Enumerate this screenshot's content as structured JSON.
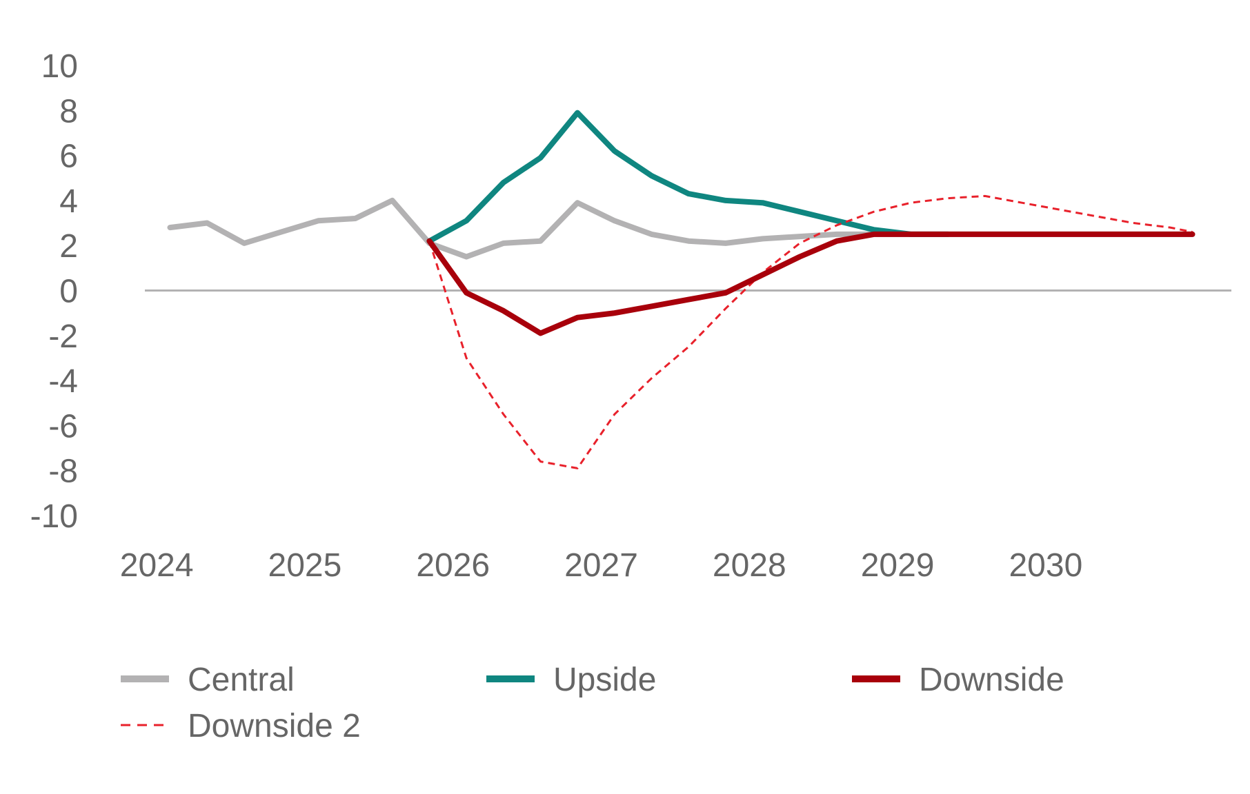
{
  "chart_data": {
    "type": "line",
    "title": "",
    "xlabel": "",
    "ylabel": "",
    "ylim": [
      -10,
      10
    ],
    "xlim": [
      2024.0,
      2031.1
    ],
    "y_ticks": [
      "10",
      "8",
      "6",
      "4",
      "2",
      "0",
      "-2",
      "-4",
      "-6",
      "-8",
      "-10"
    ],
    "y_tick_values": [
      10,
      8,
      6,
      4,
      2,
      0,
      -2,
      -4,
      -6,
      -8,
      -10
    ],
    "x_ticks": [
      "2024",
      "2025",
      "2026",
      "2027",
      "2028",
      "2029",
      "2030"
    ],
    "x_tick_values": [
      2024,
      2025,
      2026,
      2027,
      2028,
      2029,
      2030
    ],
    "grid": false,
    "zero_line": true,
    "legend_position": "bottom",
    "series": [
      {
        "name": "Central",
        "color": "#b3b2b3",
        "style": "solid",
        "x": [
          2024.1,
          2024.35,
          2024.6,
          2024.85,
          2025.1,
          2025.35,
          2025.6,
          2025.85,
          2026.1,
          2026.35,
          2026.6,
          2026.85,
          2027.1,
          2027.35,
          2027.6,
          2027.85,
          2028.1,
          2028.35,
          2028.6,
          2028.85,
          2029.1,
          2029.35,
          2029.6,
          2029.85,
          2030.1,
          2030.35,
          2030.6,
          2030.85,
          2031.0
        ],
        "values": [
          2.8,
          3.0,
          2.1,
          2.6,
          3.1,
          3.2,
          4.0,
          2.1,
          1.5,
          2.1,
          2.2,
          3.9,
          3.1,
          2.5,
          2.2,
          2.1,
          2.3,
          2.4,
          2.5,
          2.5,
          2.5,
          2.5,
          2.5,
          2.5,
          2.5,
          2.5,
          2.5,
          2.5,
          2.5
        ]
      },
      {
        "name": "Upside",
        "color": "#0f8680",
        "style": "solid",
        "x": [
          2025.85,
          2026.1,
          2026.35,
          2026.6,
          2026.85,
          2027.1,
          2027.35,
          2027.6,
          2027.85,
          2028.1,
          2028.35,
          2028.6,
          2028.85,
          2029.1,
          2029.35
        ],
        "values": [
          2.2,
          3.1,
          4.8,
          5.9,
          7.9,
          6.2,
          5.1,
          4.3,
          4.0,
          3.9,
          3.5,
          3.1,
          2.7,
          2.5,
          2.5
        ]
      },
      {
        "name": "Downside",
        "color": "#a8000b",
        "style": "solid",
        "x": [
          2025.85,
          2026.1,
          2026.35,
          2026.6,
          2026.85,
          2027.1,
          2027.35,
          2027.6,
          2027.85,
          2028.1,
          2028.35,
          2028.6,
          2028.85,
          2029.1,
          2029.35,
          2029.6,
          2029.85,
          2030.1,
          2030.35,
          2030.6,
          2030.85,
          2031.0
        ],
        "values": [
          2.2,
          -0.1,
          -0.9,
          -1.9,
          -1.2,
          -1.0,
          -0.7,
          -0.4,
          -0.1,
          0.7,
          1.5,
          2.2,
          2.5,
          2.5,
          2.5,
          2.5,
          2.5,
          2.5,
          2.5,
          2.5,
          2.5,
          2.5
        ]
      },
      {
        "name": "Downside 2",
        "color": "#e8212b",
        "style": "dashed",
        "x": [
          2025.85,
          2026.1,
          2026.35,
          2026.6,
          2026.85,
          2027.1,
          2027.35,
          2027.6,
          2027.85,
          2028.1,
          2028.35,
          2028.6,
          2028.85,
          2029.1,
          2029.35,
          2029.6,
          2029.85,
          2030.1,
          2030.35,
          2030.6,
          2030.85,
          2031.0
        ],
        "values": [
          2.2,
          -3.0,
          -5.5,
          -7.6,
          -7.9,
          -5.5,
          -3.9,
          -2.5,
          -0.8,
          0.8,
          2.1,
          2.9,
          3.5,
          3.9,
          4.1,
          4.2,
          3.9,
          3.6,
          3.3,
          3.0,
          2.8,
          2.6
        ]
      }
    ]
  }
}
